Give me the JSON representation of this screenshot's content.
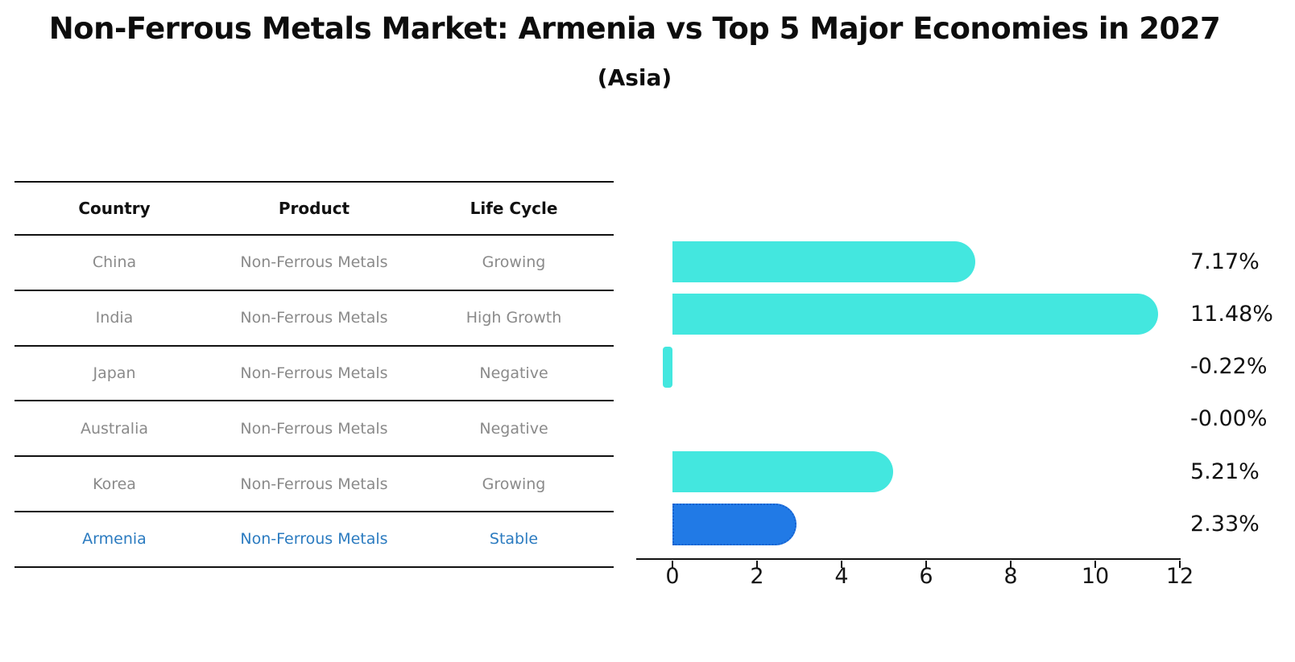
{
  "title": "Non-Ferrous Metals Market: Armenia vs Top 5 Major Economies in 2027",
  "subtitle": "(Asia)",
  "table": {
    "columns": [
      "Country",
      "Product",
      "Life Cycle"
    ],
    "rows": [
      {
        "country": "China",
        "product": "Non-Ferrous Metals",
        "life_cycle": "Growing",
        "highlight": false
      },
      {
        "country": "India",
        "product": "Non-Ferrous Metals",
        "life_cycle": "High Growth",
        "highlight": false
      },
      {
        "country": "Japan",
        "product": "Non-Ferrous Metals",
        "life_cycle": "Negative",
        "highlight": false
      },
      {
        "country": "Australia",
        "product": "Non-Ferrous Metals",
        "life_cycle": "Negative",
        "highlight": false
      },
      {
        "country": "Korea",
        "product": "Non-Ferrous Metals",
        "life_cycle": "Growing",
        "highlight": false
      },
      {
        "country": "Armenia",
        "product": "Non-Ferrous Metals",
        "life_cycle": "Stable",
        "highlight": true
      }
    ]
  },
  "chart_data": {
    "type": "bar",
    "orientation": "horizontal",
    "title": "Non-Ferrous Metals Market: Armenia vs Top 5 Major Economies in 2027",
    "subtitle": "(Asia)",
    "categories": [
      "China",
      "India",
      "Japan",
      "Australia",
      "Korea",
      "Armenia"
    ],
    "values": [
      7.17,
      11.48,
      -0.22,
      -0.0,
      5.21,
      2.33
    ],
    "value_labels": [
      "7.17%",
      "11.48%",
      "-0.22%",
      "-0.00%",
      "5.21%",
      "2.33%"
    ],
    "highlight_index": 5,
    "x_ticks": [
      0,
      2,
      4,
      6,
      8,
      10,
      12
    ],
    "xlim": [
      -0.9,
      12
    ],
    "grid": false,
    "legend": "none",
    "colors": {
      "bar_default": "#43E7DF",
      "bar_highlight": "#217AE6",
      "bar_highlight_border": "#1761CF",
      "highlight_text": "#2B7BC0",
      "row_text": "#8A8A8A",
      "axis_text": "#151515",
      "line": "#111111"
    }
  }
}
